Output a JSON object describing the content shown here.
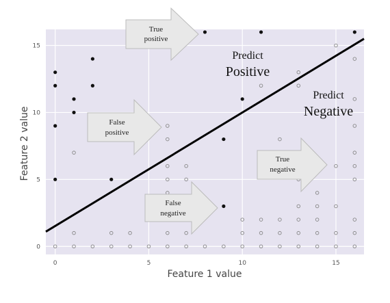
{
  "chart_data": {
    "type": "scatter",
    "xlabel": "Feature 1 value",
    "ylabel": "Feature 2 value",
    "xlim": [
      -0.5,
      16.5
    ],
    "ylim": [
      -0.6,
      16.2
    ],
    "xticks": [
      0,
      5,
      10,
      15
    ],
    "yticks": [
      0,
      5,
      10,
      15
    ],
    "grid": true,
    "background": "#e6e3f0",
    "decision_boundary": {
      "x": [
        -0.5,
        16.5
      ],
      "y": [
        1.1,
        15.5
      ]
    },
    "series": [
      {
        "marker": "filled",
        "color": "#111111",
        "points": [
          [
            0,
            13
          ],
          [
            0,
            12
          ],
          [
            0,
            9
          ],
          [
            0,
            5
          ],
          [
            1,
            11
          ],
          [
            1,
            10
          ],
          [
            2,
            14
          ],
          [
            2,
            12
          ],
          [
            3,
            5
          ],
          [
            8,
            16
          ],
          [
            11,
            16
          ],
          [
            16,
            16
          ],
          [
            10,
            11
          ],
          [
            9,
            8
          ],
          [
            9,
            3
          ]
        ]
      },
      {
        "marker": "hollow",
        "color": "#888888",
        "points": [
          [
            0,
            0
          ],
          [
            1,
            0
          ],
          [
            2,
            0
          ],
          [
            3,
            0
          ],
          [
            4,
            0
          ],
          [
            5,
            0
          ],
          [
            6,
            0
          ],
          [
            7,
            0
          ],
          [
            8,
            0
          ],
          [
            9,
            0
          ],
          [
            10,
            0
          ],
          [
            11,
            0
          ],
          [
            12,
            0
          ],
          [
            13,
            0
          ],
          [
            14,
            0
          ],
          [
            15,
            0
          ],
          [
            16,
            0
          ],
          [
            1,
            1
          ],
          [
            3,
            1
          ],
          [
            4,
            1
          ],
          [
            6,
            1
          ],
          [
            7,
            1
          ],
          [
            10,
            1
          ],
          [
            11,
            1
          ],
          [
            12,
            1
          ],
          [
            13,
            1
          ],
          [
            14,
            1
          ],
          [
            15,
            1
          ],
          [
            16,
            1
          ],
          [
            10,
            2
          ],
          [
            11,
            2
          ],
          [
            12,
            2
          ],
          [
            13,
            2
          ],
          [
            14,
            2
          ],
          [
            16,
            2
          ],
          [
            13,
            3
          ],
          [
            14,
            3
          ],
          [
            15,
            3
          ],
          [
            6,
            4
          ],
          [
            14,
            4
          ],
          [
            6,
            5
          ],
          [
            7,
            5
          ],
          [
            13,
            5
          ],
          [
            16,
            5
          ],
          [
            6,
            6
          ],
          [
            7,
            6
          ],
          [
            15,
            6
          ],
          [
            16,
            6
          ],
          [
            1,
            7
          ],
          [
            12,
            7
          ],
          [
            16,
            7
          ],
          [
            6,
            8
          ],
          [
            12,
            8
          ],
          [
            6,
            9
          ],
          [
            16,
            9
          ],
          [
            16,
            11
          ],
          [
            11,
            12
          ],
          [
            13,
            12
          ],
          [
            13,
            13
          ],
          [
            16,
            14
          ],
          [
            15,
            15
          ]
        ]
      }
    ],
    "annotations": {
      "predict_positive": [
        "Predict",
        "Positive"
      ],
      "predict_negative": [
        "Predict",
        "Negative"
      ],
      "true_positive": [
        "True",
        "positive"
      ],
      "false_positive": [
        "False",
        "positive"
      ],
      "true_negative": [
        "True",
        "negative"
      ],
      "false_negative": [
        "False",
        "negative"
      ]
    }
  }
}
